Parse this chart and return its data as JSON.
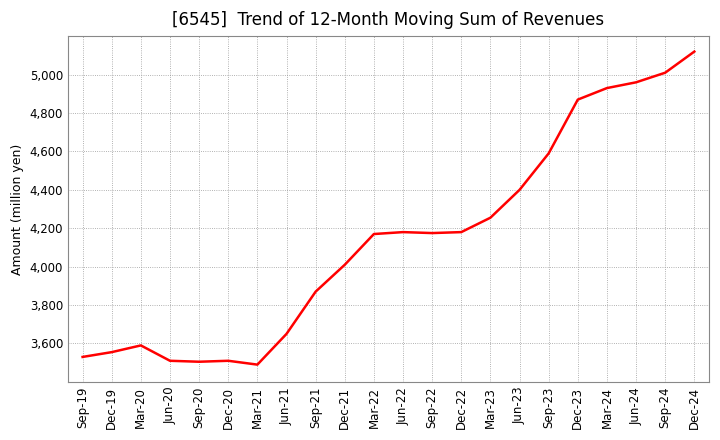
{
  "title": "[6545]  Trend of 12-Month Moving Sum of Revenues",
  "ylabel": "Amount (million yen)",
  "line_color": "#ff0000",
  "background_color": "#ffffff",
  "plot_bg_color": "#ffffff",
  "grid_color": "#999999",
  "title_fontsize": 12,
  "axis_fontsize": 9,
  "tick_fontsize": 8.5,
  "x_labels": [
    "Sep-19",
    "Dec-19",
    "Mar-20",
    "Jun-20",
    "Sep-20",
    "Dec-20",
    "Mar-21",
    "Jun-21",
    "Sep-21",
    "Dec-21",
    "Mar-22",
    "Jun-22",
    "Sep-22",
    "Dec-22",
    "Mar-23",
    "Jun-23",
    "Sep-23",
    "Dec-23",
    "Mar-24",
    "Jun-24",
    "Sep-24",
    "Dec-24"
  ],
  "y_values": [
    3530,
    3555,
    3590,
    3510,
    3505,
    3510,
    3490,
    3650,
    3870,
    4010,
    4170,
    4180,
    4175,
    4180,
    4255,
    4400,
    4590,
    4870,
    4930,
    4960,
    5010,
    5120
  ],
  "ylim": [
    3400,
    5200
  ],
  "yticks": [
    3600,
    3800,
    4000,
    4200,
    4400,
    4600,
    4800,
    5000
  ],
  "line_width": 1.8
}
